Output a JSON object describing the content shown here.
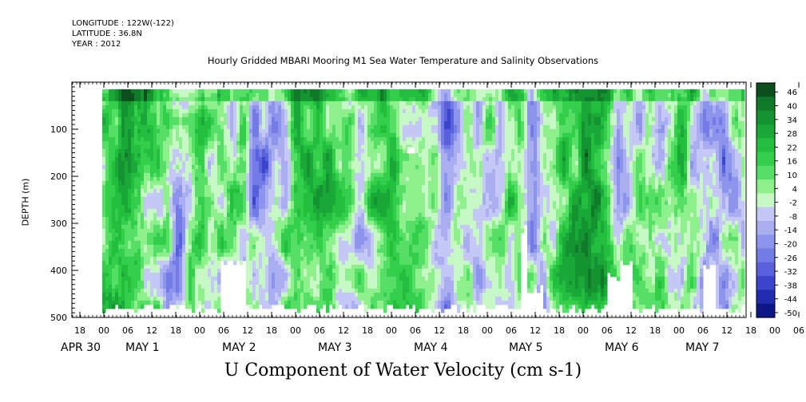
{
  "header": {
    "longitude": "LONGITUDE : 122W(-122)",
    "latitude": "LATITUDE : 36.8N",
    "year": "YEAR : 2012"
  },
  "chart_data": {
    "type": "heatmap",
    "title": "Hourly Gridded MBARI Mooring M1 Sea Water Temperature and Salinity Observations",
    "xlabel_bottom": "U Component of Water Velocity (cm s-1)",
    "ylabel": "DEPTH (m)",
    "ylim": [
      500,
      0
    ],
    "y_ticks": [
      100,
      200,
      300,
      400,
      500
    ],
    "x_hour_ticks": [
      "18",
      "00",
      "06",
      "12",
      "18",
      "00",
      "06",
      "12",
      "18",
      "00",
      "06",
      "12",
      "18",
      "00",
      "06",
      "12",
      "18",
      "00",
      "06",
      "12",
      "18",
      "00",
      "06",
      "12",
      "18",
      "00",
      "06",
      "12",
      "18",
      "00",
      "06",
      "12"
    ],
    "x_day_labels": [
      "APR 30",
      "MAY 1",
      "MAY 2",
      "MAY 3",
      "MAY 4",
      "MAY 5",
      "MAY 6",
      "MAY 7"
    ],
    "colorbar_levels": [
      46,
      40,
      34,
      28,
      22,
      16,
      10,
      4,
      -2,
      -8,
      -14,
      -20,
      -26,
      -32,
      -38,
      -44,
      -50
    ],
    "colors": {
      "strong_positive": "#0a5a1e",
      "positive": "#2bd14a",
      "weak_positive": "#8cf08c",
      "weak_negative": "#b4b8f5",
      "negative": "#7f86ea",
      "strong_negative": "#0c1a8c"
    }
  }
}
